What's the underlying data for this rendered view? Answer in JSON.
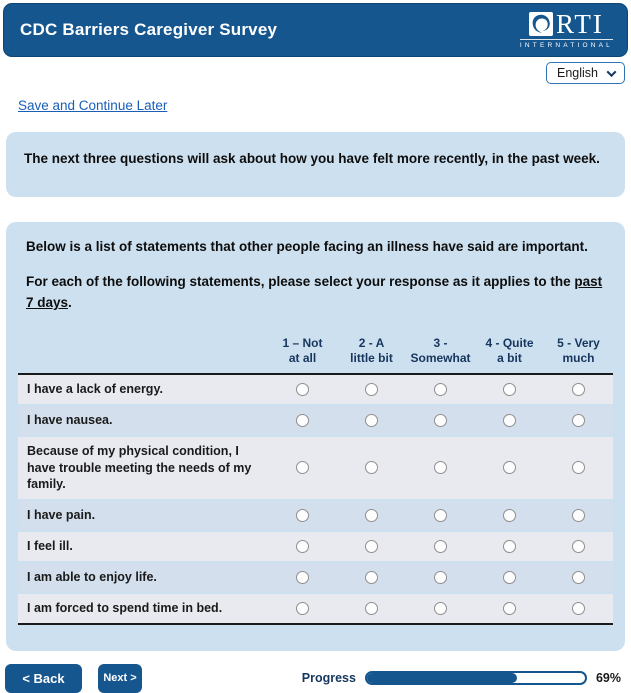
{
  "header": {
    "title": "CDC Barriers Caregiver Survey",
    "logo_text": "RTI",
    "logo_subtext": "INTERNATIONAL"
  },
  "language_select": {
    "value": "English"
  },
  "links": {
    "save_continue": "Save and Continue Later"
  },
  "intro_box": {
    "text": "The next three questions will ask about how you have felt more recently, in the past week."
  },
  "question": {
    "statement1": "Below is a list of statements that other people facing an illness have said are important.",
    "statement2_prefix": "For each of the following statements, please select your response as it applies to the ",
    "statement2_underlined": "past 7 days",
    "statement2_suffix": ".",
    "columns": [
      {
        "line1": "1 – Not",
        "line2": "at all"
      },
      {
        "line1": "2 - A",
        "line2": "little bit"
      },
      {
        "line1": "3 -",
        "line2": "Somewhat"
      },
      {
        "line1": "4 - Quite",
        "line2": "a bit"
      },
      {
        "line1": "5 - Very",
        "line2": "much"
      }
    ],
    "rows": [
      "I have a lack of energy.",
      "I have nausea.",
      "Because of my physical condition, I have trouble meeting the needs of my family.",
      "I have pain.",
      "I feel ill.",
      "I am able to enjoy life.",
      "I am forced to spend time in bed."
    ]
  },
  "footer": {
    "back_label": "< Back",
    "next_label": "Next >",
    "progress_label": "Progress",
    "progress_percent": 69,
    "progress_text": "69%"
  },
  "colors": {
    "header_blue": "#15568e",
    "panel_blue": "#cde0ef",
    "row_light": "#e9eaf0",
    "row_blue": "#d3dfec",
    "accent_navy": "#17365d",
    "link_blue": "#1a5eb8"
  }
}
